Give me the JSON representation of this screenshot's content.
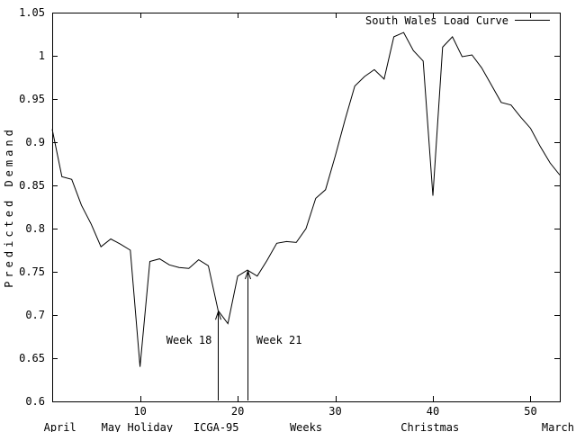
{
  "colors": {
    "line": "#000000",
    "background": "#ffffff",
    "text": "#000000"
  },
  "chart_data": {
    "type": "line",
    "title": "",
    "xlabel": "Weeks",
    "ylabel": "Predicted Demand",
    "xlim": [
      1,
      53
    ],
    "ylim": [
      0.6,
      1.05
    ],
    "grid": false,
    "legend": {
      "label": "South Wales Load Curve",
      "position": "top-right-inside"
    },
    "x_ticks": [
      10,
      20,
      30,
      40,
      50
    ],
    "y_ticks": [
      0.6,
      0.65,
      0.7,
      0.75,
      0.8,
      0.85,
      0.9,
      0.95,
      1,
      1.05
    ],
    "y_tick_labels": [
      "0.6",
      "0.65",
      "0.7",
      "0.75",
      "0.8",
      "0.85",
      "0.9",
      "0.95",
      "1",
      "1.05"
    ],
    "series": [
      {
        "name": "South Wales Load Curve",
        "x": [
          1,
          2,
          3,
          4,
          5,
          6,
          7,
          8,
          9,
          10,
          11,
          12,
          13,
          14,
          15,
          16,
          17,
          18,
          19,
          20,
          21,
          22,
          23,
          24,
          25,
          26,
          27,
          28,
          29,
          30,
          31,
          32,
          33,
          34,
          35,
          36,
          37,
          38,
          39,
          40,
          41,
          42,
          43,
          44,
          45,
          46,
          47,
          48,
          49,
          50,
          51,
          52,
          53
        ],
        "values": [
          0.915,
          0.86,
          0.857,
          0.827,
          0.805,
          0.779,
          0.788,
          0.782,
          0.775,
          0.64,
          0.762,
          0.765,
          0.758,
          0.755,
          0.754,
          0.764,
          0.757,
          0.705,
          0.69,
          0.745,
          0.752,
          0.745,
          0.763,
          0.783,
          0.785,
          0.784,
          0.8,
          0.835,
          0.845,
          0.884,
          0.926,
          0.965,
          0.976,
          0.984,
          0.973,
          1.022,
          1.027,
          1.006,
          0.994,
          0.838,
          1.01,
          1.022,
          0.999,
          1.001,
          0.986,
          0.966,
          0.946,
          0.943,
          0.929,
          0.916,
          0.895,
          0.876,
          0.862
        ]
      }
    ],
    "annotations": [
      {
        "text": "Week 18",
        "week": 18,
        "tip_value": 0.705,
        "label_side": "left"
      },
      {
        "text": "Week 21",
        "week": 21,
        "tip_value": 0.752,
        "label_side": "right"
      }
    ],
    "bottom_labels": [
      {
        "text": "April",
        "week": 1.8,
        "align": "center"
      },
      {
        "text": "May Holiday",
        "week": 9.7,
        "align": "center"
      },
      {
        "text": "ICGA-95",
        "week": 17.8,
        "align": "center"
      },
      {
        "text": "Christmas",
        "week": 39.7,
        "align": "center"
      },
      {
        "text": "March",
        "week": 53,
        "align": "right"
      }
    ]
  }
}
